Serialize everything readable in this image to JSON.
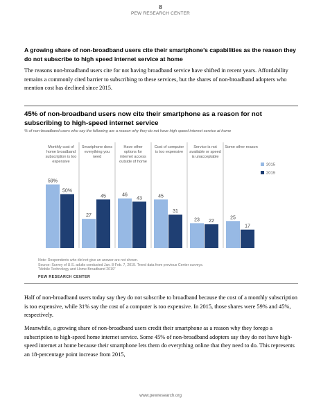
{
  "page": {
    "number": "8",
    "header": "PEW RESEARCH CENTER",
    "footer": "www.pewresearch.org"
  },
  "section": {
    "heading": "A growing share of non-broadband users cite their smartphone’s capabilities as the reason they do not subscribe to high speed internet service at home",
    "intro": "The reasons non-broadband users cite for not having broadband service have shifted in recent years. Affordability remains a commonly cited barrier to subscribing to these services, but the shares of non-broadband adopters who mention cost has declined since 2015."
  },
  "chart_data": {
    "type": "bar",
    "title": "45% of non-broadband users now cite their smartphone as a reason for not subscribing to high-speed internet service",
    "subtitle": "% of non-broadband users who say the following are a reason why they do not have high speed internet service at home",
    "categories": [
      "Monthly cost of home broadband subscription is too expensive",
      "Smartphone does everything you need",
      "Have other options for internet access outside of home",
      "Cost of computer is too expensive",
      "Service is not available or speed is unacceptable",
      "Some other reason"
    ],
    "category_lines": [
      [
        "Monthly cost of",
        "home broadband",
        "subscription is too",
        "expensive"
      ],
      [
        "Smartphone does",
        "everything you",
        "need"
      ],
      [
        "Have other",
        "options for",
        "internet access",
        "outside of home"
      ],
      [
        "Cost of computer",
        "is too expensive"
      ],
      [
        "Service is not",
        "available or speed",
        "is unacceptable"
      ],
      [
        "Some other reason"
      ]
    ],
    "series": [
      {
        "name": "2015",
        "values": [
          59,
          27,
          46,
          45,
          23,
          25
        ],
        "labels": [
          "59%",
          "27",
          "46",
          "45",
          "23",
          "25"
        ],
        "color": "#97b9e4"
      },
      {
        "name": "2019",
        "values": [
          50,
          45,
          43,
          31,
          22,
          17
        ],
        "labels": [
          "50%",
          "45",
          "43",
          "31",
          "22",
          "17"
        ],
        "color": "#1f3f73"
      }
    ],
    "ylim": [
      0,
      100
    ],
    "legend_position": "top-right",
    "grid": false,
    "note": "Note: Respondents who did not give an answer are not shown.",
    "source": "Source: Survey of U.S. adults conducted Jan. 8-Feb. 7, 2019. Trend data from previous Center surveys.",
    "source2": "“Mobile Technology and Home Broadband 2019”",
    "brand": "PEW RESEARCH CENTER"
  },
  "body": {
    "p2": "Half of non-broadband users today say they do not subscribe to broadband because the cost of a monthly subscription is too expensive, while 31% say the cost of a computer is too expensive. In 2015, those shares were 59% and 45%, respectively.",
    "p3": "Meanwhile, a growing share of non-broadband users credit their smartphone as a reason why they forego a subscription to high-speed home internet service. Some 45% of non-broadband adopters say they do not have high-speed internet at home because their smartphone lets them do everything online that they need to do. This represents an 18-percentage point increase from 2015,"
  }
}
